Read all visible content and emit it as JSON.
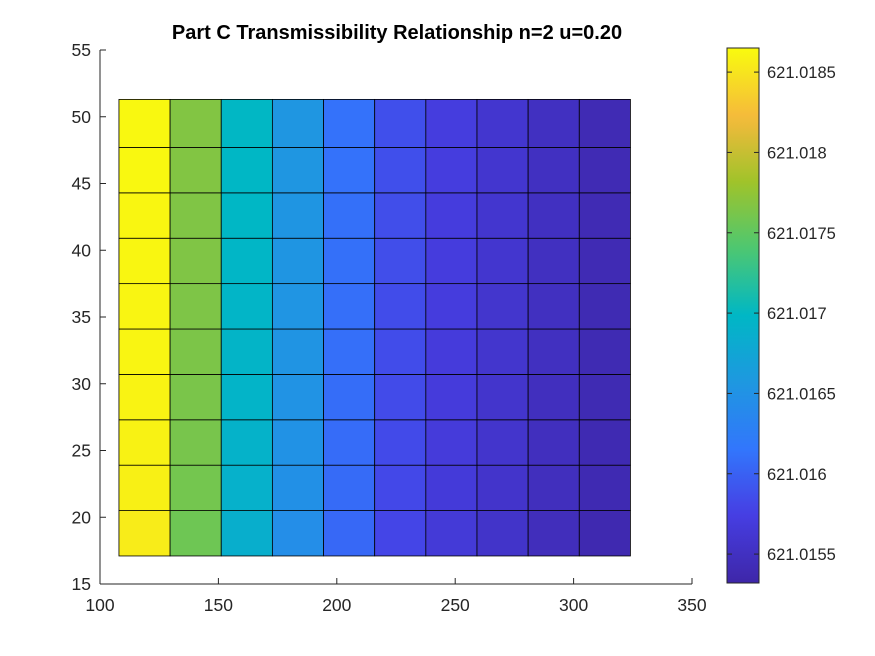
{
  "chart_data": {
    "type": "heatmap",
    "title": "Part C Transmissibility Relationship n=2 u=0.20",
    "xlabel": "",
    "ylabel": "",
    "xlim": [
      100,
      350
    ],
    "ylim": [
      15,
      55
    ],
    "xticks": [
      100,
      150,
      200,
      250,
      300,
      350
    ],
    "yticks": [
      15,
      20,
      25,
      30,
      35,
      40,
      45,
      50,
      55
    ],
    "x_edges": [
      108,
      129.6,
      151.2,
      172.8,
      194.4,
      216,
      237.6,
      259.2,
      280.8,
      302.4,
      324
    ],
    "y_edges": [
      17.1,
      20.5,
      23.9,
      27.3,
      30.7,
      34.1,
      37.5,
      40.9,
      44.3,
      47.7,
      51.3
    ],
    "colorbar": {
      "clim": [
        621.01532,
        621.01865
      ],
      "ticks": [
        621.0155,
        621.016,
        621.0165,
        621.017,
        621.0175,
        621.018,
        621.0185
      ],
      "tick_labels": [
        "621.0155",
        "621.016",
        "621.0165",
        "621.017",
        "621.0175",
        "621.018",
        "621.0185"
      ],
      "colormap": "parula"
    },
    "column_values_note_free": true,
    "values": [
      [
        621.01855,
        621.01757,
        621.01687,
        621.01645,
        621.01605,
        621.0158,
        621.01566,
        621.01556,
        621.01546,
        621.01538
      ],
      [
        621.01858,
        621.0176,
        621.0169,
        621.01648,
        621.01607,
        621.01582,
        621.01567,
        621.01557,
        621.01547,
        621.01539
      ],
      [
        621.01859,
        621.01762,
        621.01692,
        621.0165,
        621.01608,
        621.01583,
        621.01568,
        621.01558,
        621.01548,
        621.01539
      ],
      [
        621.0186,
        621.01763,
        621.01694,
        621.01651,
        621.01609,
        621.01584,
        621.01569,
        621.01558,
        621.01548,
        621.0154
      ],
      [
        621.01861,
        621.01764,
        621.01695,
        621.01652,
        621.0161,
        621.01585,
        621.01569,
        621.01559,
        621.01549,
        621.0154
      ],
      [
        621.01861,
        621.01765,
        621.01696,
        621.01653,
        621.0161,
        621.01585,
        621.0157,
        621.01559,
        621.01549,
        621.0154
      ],
      [
        621.01862,
        621.01766,
        621.01697,
        621.01654,
        621.01611,
        621.01586,
        621.0157,
        621.0156,
        621.01549,
        621.01541
      ],
      [
        621.01862,
        621.01766,
        621.01698,
        621.01654,
        621.01611,
        621.01586,
        621.0157,
        621.0156,
        621.0155,
        621.01541
      ],
      [
        621.01863,
        621.01767,
        621.01698,
        621.01655,
        621.01612,
        621.01587,
        621.01571,
        621.0156,
        621.0155,
        621.01541
      ],
      [
        621.01863,
        621.01767,
        621.01699,
        621.01655,
        621.01612,
        621.01587,
        621.01571,
        621.0156,
        621.0155,
        621.01541
      ]
    ]
  }
}
